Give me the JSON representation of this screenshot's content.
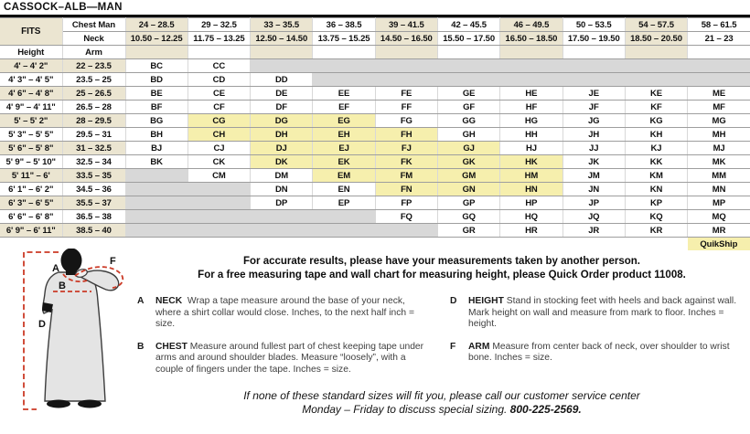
{
  "title": "CASSOCK–ALB—MAN",
  "table": {
    "fits_label": "FITS",
    "chest_label": "Chest Man",
    "neck_label": "Neck",
    "height_label": "Height",
    "arm_label": "Arm",
    "chest_ranges": [
      "24 – 28.5",
      "29 – 32.5",
      "33 – 35.5",
      "36 – 38.5",
      "39 – 41.5",
      "42 – 45.5",
      "46 – 49.5",
      "50 – 53.5",
      "54 – 57.5",
      "58 – 61.5"
    ],
    "neck_ranges": [
      "10.50 – 12.25",
      "11.75 – 13.25",
      "12.50 – 14.50",
      "13.75 – 15.25",
      "14.50 – 16.50",
      "15.50 – 17.50",
      "16.50 – 18.50",
      "17.50 – 19.50",
      "18.50 – 20.50",
      "21 – 23"
    ],
    "rows": [
      {
        "height": "4' – 4' 2\"",
        "arm": "22 – 23.5",
        "cells": [
          "BC",
          "CC",
          "",
          "",
          "",
          "",
          "",
          "",
          "",
          ""
        ]
      },
      {
        "height": "4' 3\" – 4' 5\"",
        "arm": "23.5 – 25",
        "cells": [
          "BD",
          "CD",
          "DD",
          "",
          "",
          "",
          "",
          "",
          "",
          ""
        ]
      },
      {
        "height": "4' 6\" – 4' 8\"",
        "arm": "25 – 26.5",
        "cells": [
          "BE",
          "CE",
          "DE",
          "EE",
          "FE",
          "GE",
          "HE",
          "JE",
          "KE",
          "ME"
        ]
      },
      {
        "height": "4' 9\" – 4' 11\"",
        "arm": "26.5 – 28",
        "cells": [
          "BF",
          "CF",
          "DF",
          "EF",
          "FF",
          "GF",
          "HF",
          "JF",
          "KF",
          "MF"
        ]
      },
      {
        "height": "5' – 5' 2\"",
        "arm": "28 – 29.5",
        "cells": [
          "BG",
          "CG",
          "DG",
          "EG",
          "FG",
          "GG",
          "HG",
          "JG",
          "KG",
          "MG"
        ]
      },
      {
        "height": "5' 3\" – 5' 5\"",
        "arm": "29.5 – 31",
        "cells": [
          "BH",
          "CH",
          "DH",
          "EH",
          "FH",
          "GH",
          "HH",
          "JH",
          "KH",
          "MH"
        ]
      },
      {
        "height": "5' 6\" – 5' 8\"",
        "arm": "31 – 32.5",
        "cells": [
          "BJ",
          "CJ",
          "DJ",
          "EJ",
          "FJ",
          "GJ",
          "HJ",
          "JJ",
          "KJ",
          "MJ"
        ]
      },
      {
        "height": "5' 9\" – 5' 10\"",
        "arm": "32.5 – 34",
        "cells": [
          "BK",
          "CK",
          "DK",
          "EK",
          "FK",
          "GK",
          "HK",
          "JK",
          "KK",
          "MK"
        ]
      },
      {
        "height": "5' 11\" – 6'",
        "arm": "33.5 – 35",
        "cells": [
          "",
          "CM",
          "DM",
          "EM",
          "FM",
          "GM",
          "HM",
          "JM",
          "KM",
          "MM"
        ]
      },
      {
        "height": "6' 1\" – 6' 2\"",
        "arm": "34.5 – 36",
        "cells": [
          "",
          "",
          "DN",
          "EN",
          "FN",
          "GN",
          "HN",
          "JN",
          "KN",
          "MN"
        ]
      },
      {
        "height": "6' 3\" – 6' 5\"",
        "arm": "35.5 – 37",
        "cells": [
          "",
          "",
          "DP",
          "EP",
          "FP",
          "GP",
          "HP",
          "JP",
          "KP",
          "MP"
        ]
      },
      {
        "height": "6' 6\" – 6' 8\"",
        "arm": "36.5 – 38",
        "cells": [
          "",
          "",
          "",
          "",
          "FQ",
          "GQ",
          "HQ",
          "JQ",
          "KQ",
          "MQ"
        ]
      },
      {
        "height": "6' 9\" – 6' 11\"",
        "arm": "38.5 – 40",
        "cells": [
          "",
          "",
          "",
          "",
          "",
          "GR",
          "HR",
          "JR",
          "KR",
          "MR"
        ]
      }
    ],
    "highlighted": [
      "CG",
      "DG",
      "EG",
      "CH",
      "DH",
      "EH",
      "FH",
      "DJ",
      "EJ",
      "FJ",
      "GJ",
      "DK",
      "EK",
      "FK",
      "GK",
      "HK",
      "EM",
      "FM",
      "GM",
      "HM",
      "FN",
      "GN",
      "HN"
    ],
    "quikship_label": "QuikShip"
  },
  "notes": {
    "line1": "For accurate results, please have your measurements taken by another person.",
    "line2": "For a free measuring tape and wall chart for measuring height, please Quick Order product 11008."
  },
  "instructions": [
    {
      "letter": "A",
      "term": "NECK",
      "text": "Wrap a tape measure around the base of your neck, where a shirt collar would close. Inches, to the next half inch = size."
    },
    {
      "letter": "B",
      "term": "CHEST",
      "text": "Measure around fullest part of chest keeping tape under arms and around shoulder blades. Measure “loosely”, with a couple of fingers under the tape. Inches = size."
    },
    {
      "letter": "D",
      "term": "HEIGHT",
      "text": "Stand in stocking feet with heels and back against wall. Mark height on wall and measure from mark to floor. Inches = height."
    },
    {
      "letter": "F",
      "term": "ARM",
      "text": "Measure from center back of neck, over shoulder to wrist bone. Inches = size."
    }
  ],
  "footer": {
    "line1": "If none of these standard sizes will fit you, please call our customer service center",
    "line2_prefix": "Monday – Friday to discuss special sizing. ",
    "phone": "800-225-2569."
  },
  "diagram": {
    "labels": {
      "a": "A",
      "b": "B",
      "d": "D",
      "f": "F"
    }
  },
  "colors": {
    "tan": "#ebe5d1",
    "highlight_yellow": "#f6efad",
    "empty_gray": "#d8d8d8",
    "accent_red": "#cb3a26"
  }
}
